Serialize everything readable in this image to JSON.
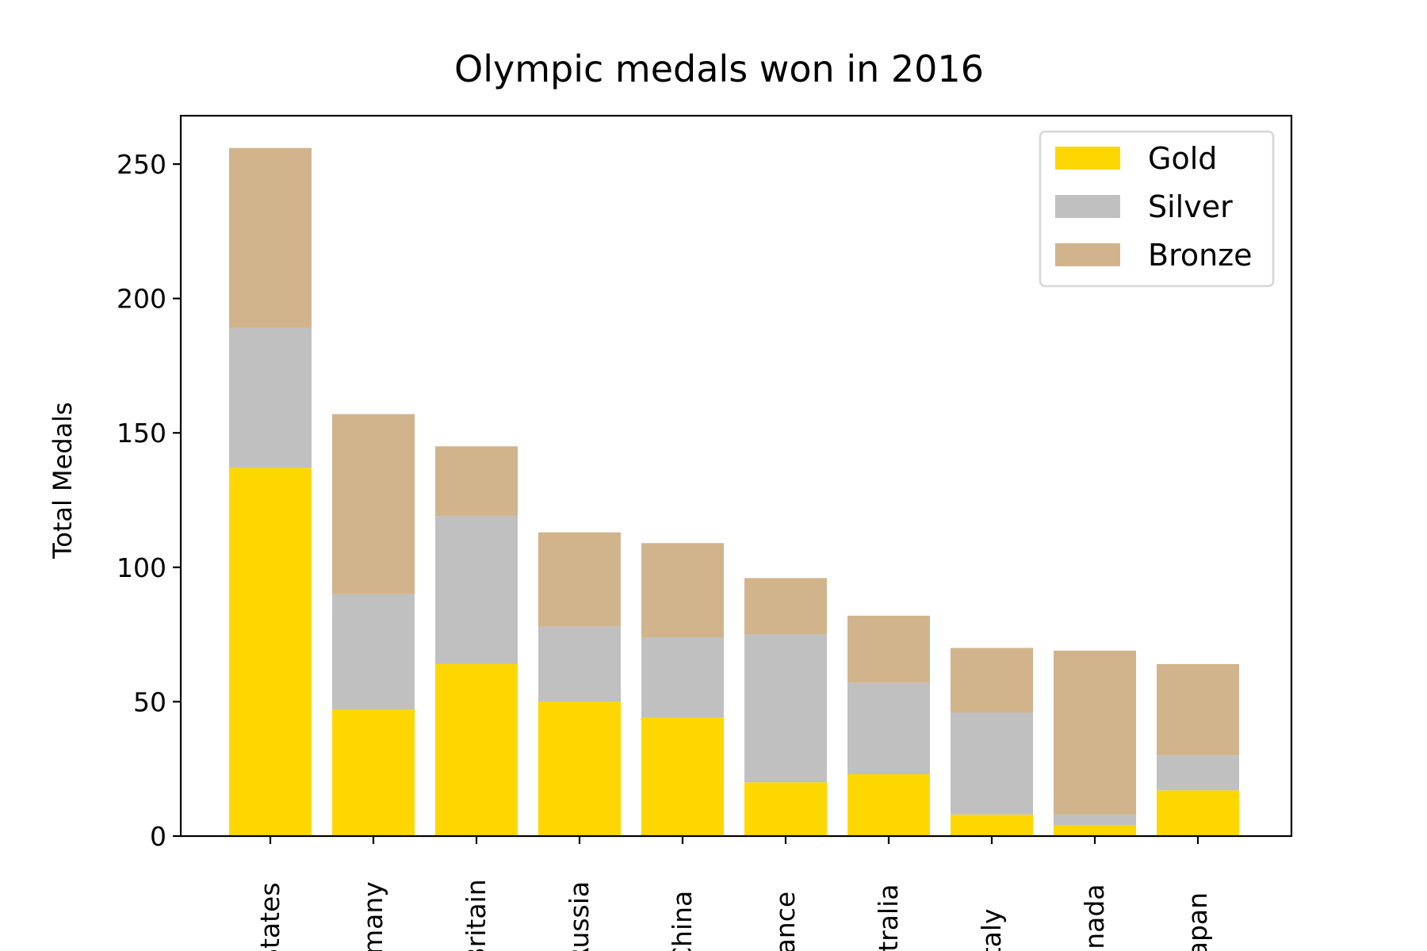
{
  "chart_data": {
    "type": "bar",
    "stacked": true,
    "title": "Olympic medals won in 2016",
    "xlabel": "",
    "ylabel": "Total Medals",
    "ylim": [
      0,
      268
    ],
    "yticks": [
      0,
      50,
      100,
      150,
      200,
      250
    ],
    "categories": [
      "United States",
      "Germany",
      "Great Britain",
      "Russia",
      "China",
      "France",
      "Australia",
      "Italy",
      "Canada",
      "Japan"
    ],
    "visible_tick_labels": [
      "States",
      "rmany",
      "Britain",
      "Russia",
      "China",
      "rance",
      "stralia",
      "Italy",
      "anada",
      "Japan"
    ],
    "series": [
      {
        "name": "Gold",
        "color": "#FFD700",
        "values": [
          137,
          47,
          64,
          50,
          44,
          20,
          23,
          8,
          4,
          17
        ]
      },
      {
        "name": "Silver",
        "color": "#C0C0C0",
        "values": [
          52,
          43,
          55,
          28,
          30,
          55,
          34,
          38,
          4,
          13
        ]
      },
      {
        "name": "Bronze",
        "color": "#D2B48C",
        "values": [
          67,
          67,
          26,
          35,
          35,
          21,
          25,
          24,
          61,
          34
        ]
      }
    ],
    "grid": false,
    "legend": "top-right"
  }
}
